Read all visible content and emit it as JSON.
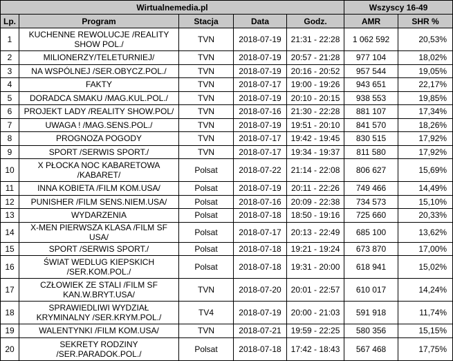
{
  "header": {
    "source": "Wirtualnemedia.pl",
    "group": "Wszyscy 16-49",
    "columns": [
      "Lp.",
      "Program",
      "Stacja",
      "Data",
      "Godz.",
      "AMR",
      "SHR %"
    ]
  },
  "rows": [
    {
      "lp": "1",
      "program": "KUCHENNE REWOLUCJE /REALITY SHOW POL./",
      "stacja": "TVN",
      "data": "2018-07-19",
      "godz": "21:31 - 22:28",
      "amr": "1 062 592",
      "shr": "20,53%",
      "dbl": true
    },
    {
      "lp": "2",
      "program": "MILIONERZY/TELETURNIEJ/",
      "stacja": "TVN",
      "data": "2018-07-19",
      "godz": "20:57 - 21:28",
      "amr": "977 104",
      "shr": "18,02%"
    },
    {
      "lp": "3",
      "program": "NA WSPÓLNEJ /SER.OBYCZ.POL./",
      "stacja": "TVN",
      "data": "2018-07-19",
      "godz": "20:16 - 20:52",
      "amr": "957 544",
      "shr": "19,05%"
    },
    {
      "lp": "4",
      "program": "FAKTY",
      "stacja": "TVN",
      "data": "2018-07-17",
      "godz": "19:00 - 19:26",
      "amr": "943 651",
      "shr": "22,17%"
    },
    {
      "lp": "5",
      "program": "DORADCA SMAKU /MAG.KUL.POL./",
      "stacja": "TVN",
      "data": "2018-07-19",
      "godz": "20:10 - 20:15",
      "amr": "938 553",
      "shr": "19,85%"
    },
    {
      "lp": "6",
      "program": "PROJEKT LADY /REALITY SHOW.POL/",
      "stacja": "TVN",
      "data": "2018-07-16",
      "godz": "21:30 - 22:28",
      "amr": "881 107",
      "shr": "17,34%"
    },
    {
      "lp": "7",
      "program": "UWAGA ! /MAG.SENS.POL./",
      "stacja": "TVN",
      "data": "2018-07-19",
      "godz": "19:51 - 20:10",
      "amr": "841 570",
      "shr": "18,26%"
    },
    {
      "lp": "8",
      "program": "PROGNOZA POGODY",
      "stacja": "TVN",
      "data": "2018-07-17",
      "godz": "19:42 - 19:45",
      "amr": "830 515",
      "shr": "17,92%"
    },
    {
      "lp": "9",
      "program": "SPORT /SERWIS SPORT./",
      "stacja": "TVN",
      "data": "2018-07-17",
      "godz": "19:34 - 19:37",
      "amr": "811 580",
      "shr": "17,92%"
    },
    {
      "lp": "10",
      "program": "X PŁOCKA NOC KABARETOWA /KABARET/",
      "stacja": "Polsat",
      "data": "2018-07-22",
      "godz": "21:14 - 22:08",
      "amr": "806 627",
      "shr": "15,69%",
      "dbl": true
    },
    {
      "lp": "11",
      "program": "INNA KOBIETA /FILM KOM.USA/",
      "stacja": "Polsat",
      "data": "2018-07-19",
      "godz": "20:11 - 22:26",
      "amr": "749 466",
      "shr": "14,49%"
    },
    {
      "lp": "12",
      "program": "PUNISHER /FILM SENS.NIEM.USA/",
      "stacja": "Polsat",
      "data": "2018-07-16",
      "godz": "20:09 - 22:38",
      "amr": "734 573",
      "shr": "15,10%"
    },
    {
      "lp": "13",
      "program": "WYDARZENIA",
      "stacja": "Polsat",
      "data": "2018-07-18",
      "godz": "18:50 - 19:16",
      "amr": "725 660",
      "shr": "20,33%"
    },
    {
      "lp": "14",
      "program": "X-MEN PIERWSZA KLASA /FILM SF USA/",
      "stacja": "Polsat",
      "data": "2018-07-17",
      "godz": "20:13 - 22:49",
      "amr": "685 100",
      "shr": "13,62%"
    },
    {
      "lp": "15",
      "program": "SPORT /SERWIS SPORT./",
      "stacja": "Polsat",
      "data": "2018-07-18",
      "godz": "19:21 - 19:24",
      "amr": "673 870",
      "shr": "17,00%"
    },
    {
      "lp": "16",
      "program": "ŚWIAT WEDLUG KIEPSKICH /SER.KOM.POL./",
      "stacja": "Polsat",
      "data": "2018-07-18",
      "godz": "19:31 - 20:00",
      "amr": "618 941",
      "shr": "15,02%",
      "dbl": true
    },
    {
      "lp": "17",
      "program": "CZŁOWIEK ZE STALI /FILM SF KAN.W.BRYT.USA/",
      "stacja": "TVN",
      "data": "2018-07-20",
      "godz": "20:01 - 22:57",
      "amr": "610 017",
      "shr": "14,24%",
      "dbl": true
    },
    {
      "lp": "18",
      "program": "SPRAWIEDLIWI WYDZIAŁ KRYMINALNY /SER.KRYM.POL./",
      "stacja": "TV4",
      "data": "2018-07-19",
      "godz": "20:00 - 21:03",
      "amr": "591 918",
      "shr": "11,74%",
      "dbl": true
    },
    {
      "lp": "19",
      "program": "WALENTYNKI /FILM KOM.USA/",
      "stacja": "TVN",
      "data": "2018-07-21",
      "godz": "19:59 - 22:25",
      "amr": "580 356",
      "shr": "15,15%"
    },
    {
      "lp": "20",
      "program": "SEKRETY RODZINY /SER.PARADOK.POL./",
      "stacja": "Polsat",
      "data": "2018-07-18",
      "godz": "17:42 - 18:43",
      "amr": "567 468",
      "shr": "17,75%",
      "dbl": true
    }
  ]
}
